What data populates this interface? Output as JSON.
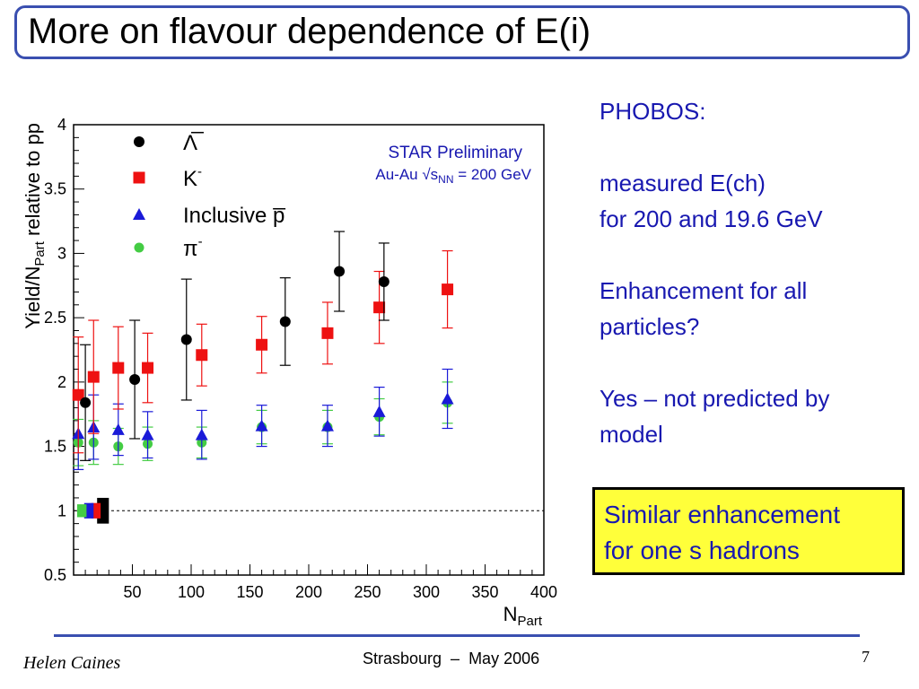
{
  "slide": {
    "title": "More on flavour dependence of E(i)",
    "bullets": [
      "PHOBOS:",
      "",
      "measured E(ch)",
      "for 200 and 19.6 GeV",
      "",
      "Enhancement for all",
      "particles?",
      "",
      "Yes – not predicted by",
      "model"
    ],
    "highlight_lines": [
      "Similar enhancement",
      "for one s hadrons"
    ]
  },
  "footer": {
    "author": "Helen Caines",
    "center": "Strasbourg  –  May 2006",
    "page": "7"
  },
  "chart_data": {
    "type": "scatter",
    "xlabel_main": "N",
    "xlabel_sub": "Part",
    "ylabel_pre": "Yield/N",
    "ylabel_sub": "Part",
    "ylabel_post": " relative to pp",
    "xlim": [
      0,
      400
    ],
    "ylim": [
      0.5,
      4
    ],
    "xticks": [
      50,
      100,
      150,
      200,
      250,
      300,
      350,
      400
    ],
    "yticks": [
      0.5,
      1,
      1.5,
      2,
      2.5,
      3,
      3.5,
      4
    ],
    "ytick_labels": [
      "0.5",
      "1",
      "1.5",
      "2",
      "2.5",
      "3",
      "3.5",
      "4"
    ],
    "reference_line_y": 1,
    "annotation_line1": "STAR Preliminary",
    "annotation_line2_pre": "Au-Au √s",
    "annotation_line2_sub": "NN",
    "annotation_line2_post": " = 200 GeV",
    "series": [
      {
        "name": "Λ̅",
        "legend_suffix": "",
        "marker": "circle",
        "color": "#000000",
        "points": [
          {
            "x": 10,
            "y": 1.84,
            "err": 0.45
          },
          {
            "x": 52,
            "y": 2.02,
            "err": 0.46
          },
          {
            "x": 96,
            "y": 2.33,
            "err": 0.47
          },
          {
            "x": 180,
            "y": 2.47,
            "err": 0.34
          },
          {
            "x": 226,
            "y": 2.86,
            "err": 0.31
          },
          {
            "x": 264,
            "y": 2.78,
            "err": 0.3
          }
        ],
        "box": {
          "x": 25,
          "halfwidth": 5,
          "low": 0.9,
          "high": 1.1
        }
      },
      {
        "name": "K",
        "legend_suffix": "-",
        "marker": "square",
        "color": "#ee1111",
        "points": [
          {
            "x": 4,
            "y": 1.9,
            "err": 0.45
          },
          {
            "x": 17,
            "y": 2.04,
            "err": 0.44
          },
          {
            "x": 38,
            "y": 2.11,
            "err": 0.32
          },
          {
            "x": 63,
            "y": 2.11,
            "err": 0.27
          },
          {
            "x": 109,
            "y": 2.21,
            "err": 0.24
          },
          {
            "x": 160,
            "y": 2.29,
            "err": 0.22
          },
          {
            "x": 216,
            "y": 2.38,
            "err": 0.24
          },
          {
            "x": 260,
            "y": 2.58,
            "err": 0.28
          },
          {
            "x": 318,
            "y": 2.72,
            "err": 0.3
          }
        ],
        "box": {
          "x": 19,
          "halfwidth": 4,
          "low": 0.94,
          "high": 1.06
        }
      },
      {
        "name": "Inclusive p̅",
        "legend_suffix": "",
        "marker": "triangle",
        "color": "#1a1ad8",
        "points": [
          {
            "x": 4,
            "y": 1.6,
            "err": 0.28
          },
          {
            "x": 17,
            "y": 1.65,
            "err": 0.25
          },
          {
            "x": 38,
            "y": 1.63,
            "err": 0.2
          },
          {
            "x": 63,
            "y": 1.59,
            "err": 0.18
          },
          {
            "x": 109,
            "y": 1.59,
            "err": 0.19
          },
          {
            "x": 160,
            "y": 1.66,
            "err": 0.16
          },
          {
            "x": 216,
            "y": 1.66,
            "err": 0.16
          },
          {
            "x": 260,
            "y": 1.77,
            "err": 0.19
          },
          {
            "x": 318,
            "y": 1.87,
            "err": 0.23
          }
        ],
        "box": {
          "x": 13,
          "halfwidth": 4,
          "low": 0.94,
          "high": 1.06
        }
      },
      {
        "name": "π",
        "legend_suffix": "-",
        "marker": "circle-small",
        "color": "#44cc44",
        "points": [
          {
            "x": 4,
            "y": 1.53,
            "err": 0.18
          },
          {
            "x": 17,
            "y": 1.53,
            "err": 0.17
          },
          {
            "x": 38,
            "y": 1.5,
            "err": 0.14
          },
          {
            "x": 63,
            "y": 1.52,
            "err": 0.13
          },
          {
            "x": 109,
            "y": 1.53,
            "err": 0.12
          },
          {
            "x": 160,
            "y": 1.65,
            "err": 0.13
          },
          {
            "x": 216,
            "y": 1.65,
            "err": 0.13
          },
          {
            "x": 260,
            "y": 1.73,
            "err": 0.14
          },
          {
            "x": 318,
            "y": 1.84,
            "err": 0.16
          }
        ],
        "box": {
          "x": 7,
          "halfwidth": 4,
          "low": 0.95,
          "high": 1.05
        }
      }
    ]
  }
}
